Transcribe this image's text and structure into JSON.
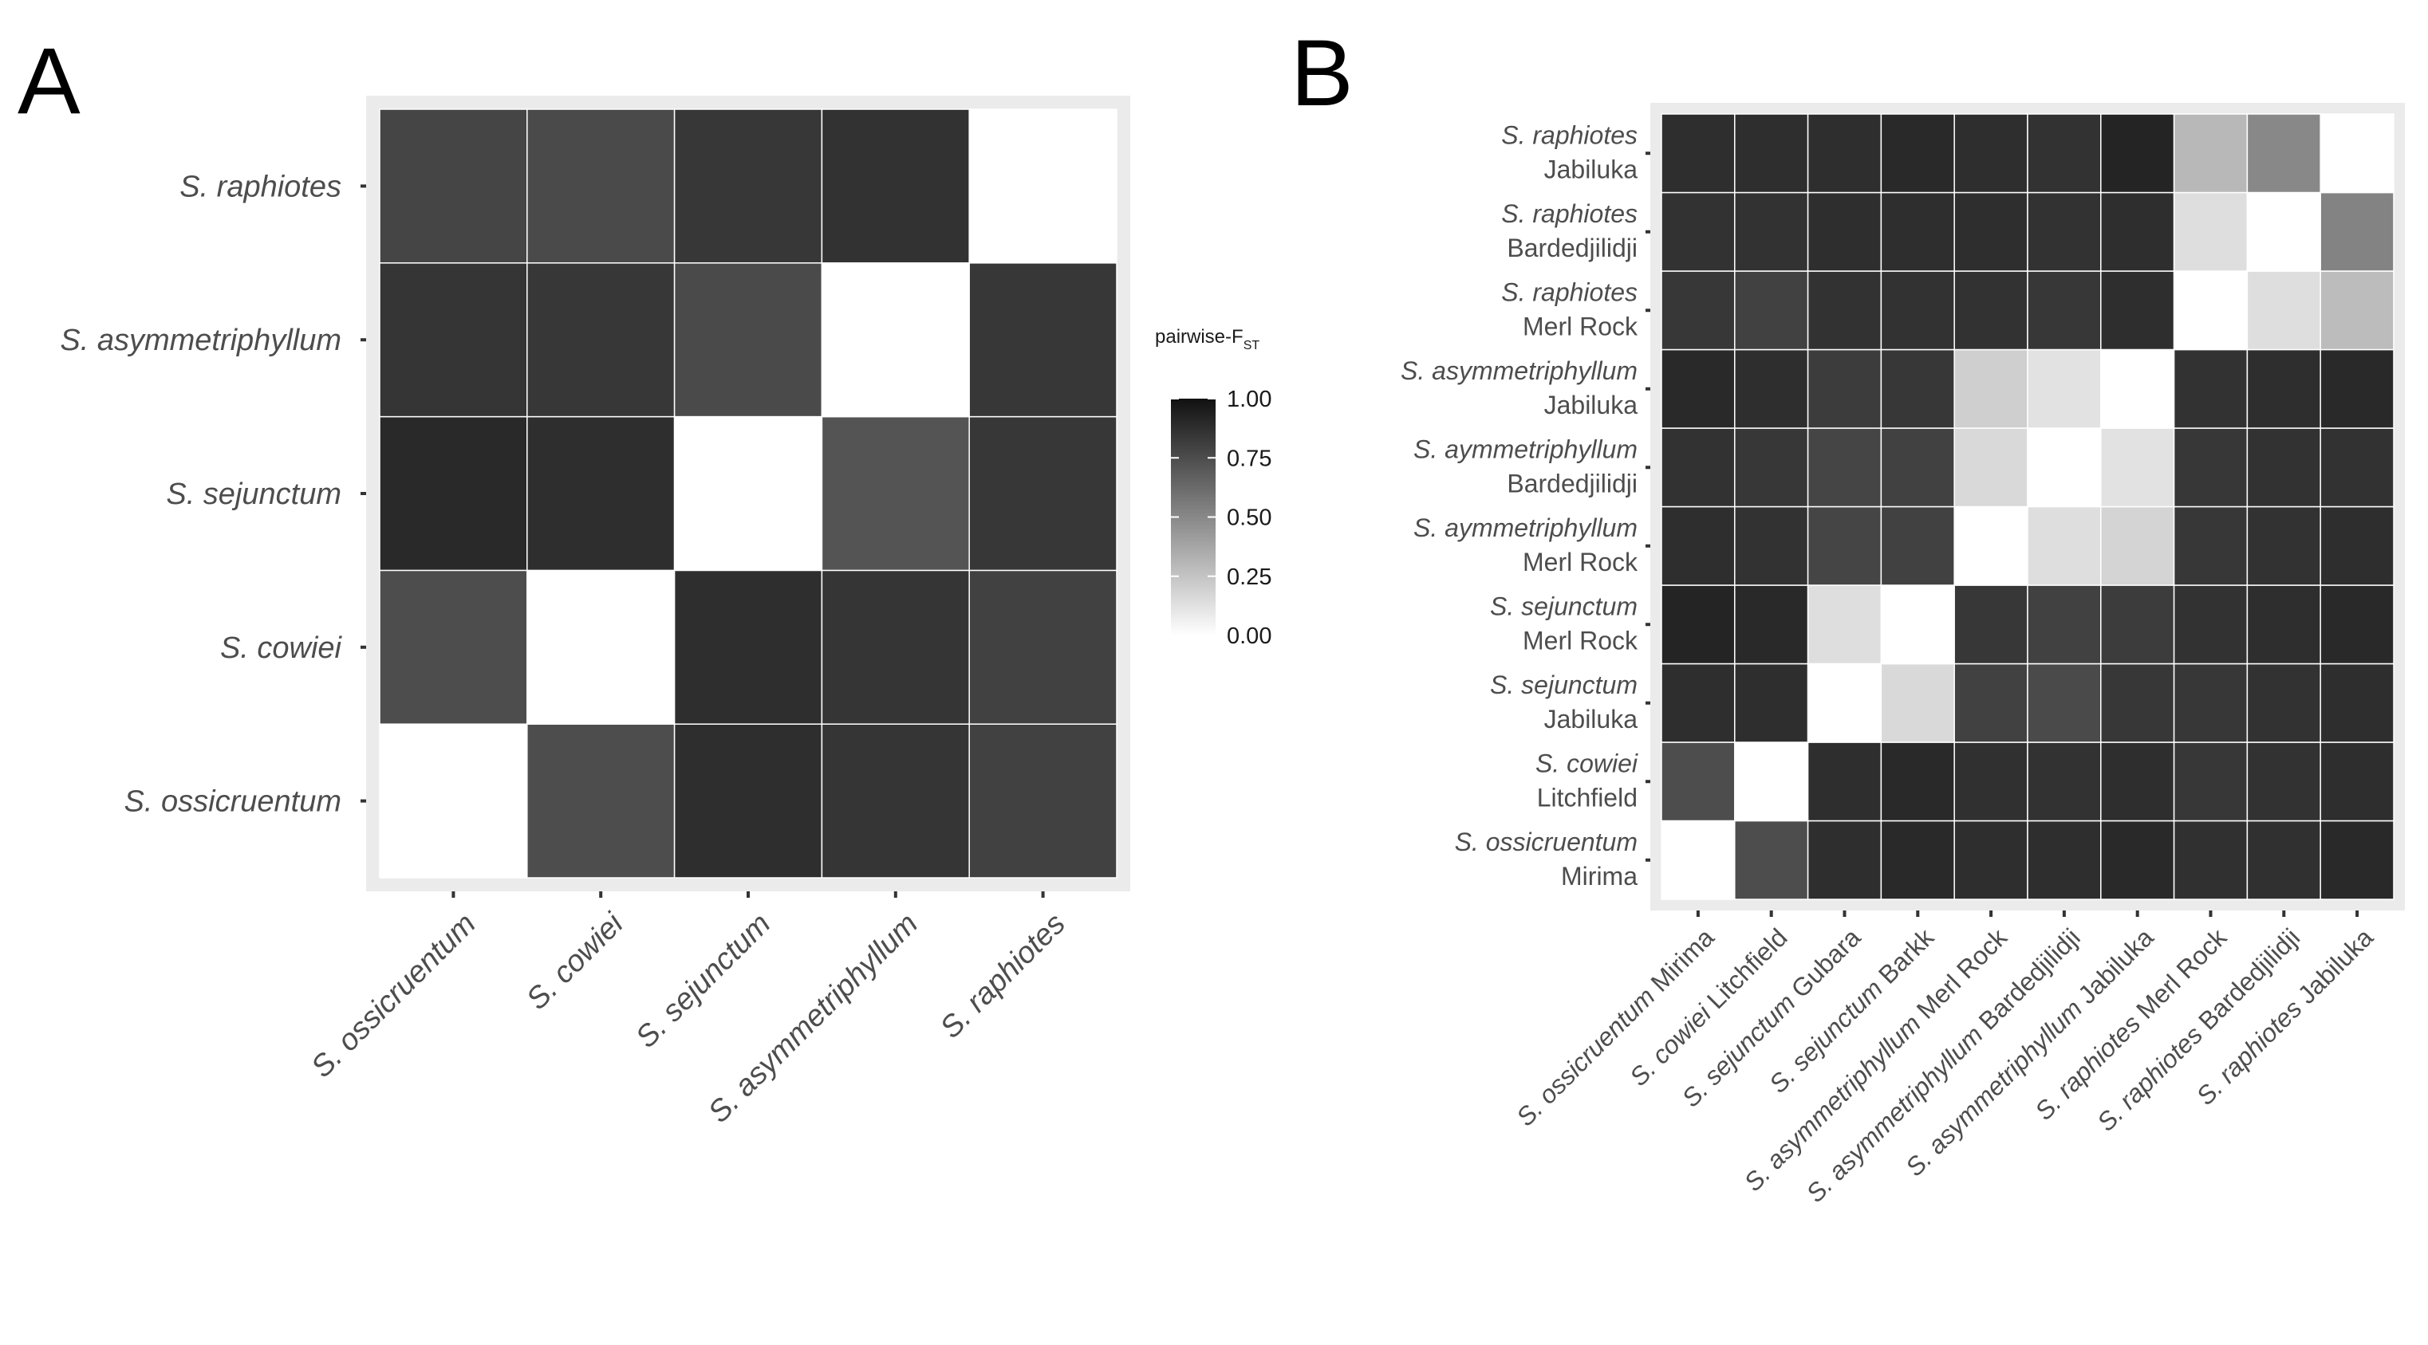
{
  "panel_labels": {
    "a": "A",
    "b": "B"
  },
  "legend": {
    "title_main": "pairwise-F",
    "title_sub": "ST",
    "ticks": [
      "1.00",
      "0.75",
      "0.50",
      "0.25",
      "0.00"
    ],
    "tick_values": [
      1.0,
      0.75,
      0.5,
      0.25,
      0.0
    ]
  },
  "chart_data": [
    {
      "type": "heatmap",
      "panel": "A",
      "x_categories": [
        "S. ossicruentum",
        "S. cowiei",
        "S. sejunctum",
        "S. asymmetriphyllum",
        "S. raphiotes"
      ],
      "y_categories": [
        "S. ossicruentum",
        "S. cowiei",
        "S. sejunctum",
        "S. asymmetriphyllum",
        "S. raphiotes"
      ],
      "values": [
        [
          0.0,
          0.75,
          0.88,
          0.85,
          0.8
        ],
        [
          0.75,
          0.0,
          0.88,
          0.85,
          0.8
        ],
        [
          0.9,
          0.88,
          0.0,
          0.72,
          0.84
        ],
        [
          0.85,
          0.84,
          0.76,
          0.0,
          0.84
        ],
        [
          0.78,
          0.76,
          0.84,
          0.86,
          0.0
        ]
      ],
      "scale": {
        "min": 0,
        "max": 1,
        "low_color": "#ffffff",
        "high_color": "#111111"
      },
      "xlabel": "",
      "ylabel": ""
    },
    {
      "type": "heatmap",
      "panel": "B",
      "x_labels": [
        {
          "species": "S. ossicruentum",
          "site": "Mirima"
        },
        {
          "species": "S. cowiei",
          "site": "Litchfield"
        },
        {
          "species": "S. sejunctum",
          "site": "Gubara"
        },
        {
          "species": "S. sejunctum",
          "site": "Barkk"
        },
        {
          "species": "S. asymmetriphyllum",
          "site": "Merl Rock"
        },
        {
          "species": "S. asymmetriphyllum",
          "site": "Bardedjilidji"
        },
        {
          "species": "S. asymmetriphyllum",
          "site": "Jabiluka"
        },
        {
          "species": "S. raphiotes",
          "site": "Merl Rock"
        },
        {
          "species": "S. raphiotes",
          "site": "Bardedjilidji"
        },
        {
          "species": "S. raphiotes",
          "site": "Jabiluka"
        }
      ],
      "y_labels": [
        {
          "species": "S. ossicruentum",
          "site": "Mirima"
        },
        {
          "species": "S. cowiei",
          "site": "Litchfield"
        },
        {
          "species": "S. sejunctum",
          "site": "Jabiluka"
        },
        {
          "species": "S. sejunctum",
          "site": "Merl Rock"
        },
        {
          "species": "S. aymmetriphyllum",
          "site": "Merl Rock"
        },
        {
          "species": "S. aymmetriphyllum",
          "site": "Bardedjilidji"
        },
        {
          "species": "S. asymmetriphyllum",
          "site": "Jabiluka"
        },
        {
          "species": "S. raphiotes",
          "site": "Merl Rock"
        },
        {
          "species": "S. raphiotes",
          "site": "Bardedjilidji"
        },
        {
          "species": "S. raphiotes",
          "site": "Jabiluka"
        }
      ],
      "values": [
        [
          0.0,
          0.75,
          0.88,
          0.9,
          0.88,
          0.88,
          0.9,
          0.87,
          0.87,
          0.9
        ],
        [
          0.75,
          0.0,
          0.88,
          0.9,
          0.87,
          0.86,
          0.88,
          0.84,
          0.86,
          0.88
        ],
        [
          0.88,
          0.88,
          0.0,
          0.16,
          0.8,
          0.76,
          0.84,
          0.84,
          0.86,
          0.88
        ],
        [
          0.92,
          0.9,
          0.14,
          0.0,
          0.84,
          0.8,
          0.82,
          0.86,
          0.88,
          0.9
        ],
        [
          0.88,
          0.86,
          0.78,
          0.8,
          0.0,
          0.14,
          0.18,
          0.84,
          0.86,
          0.88
        ],
        [
          0.86,
          0.84,
          0.78,
          0.8,
          0.16,
          0.0,
          0.12,
          0.84,
          0.86,
          0.86
        ],
        [
          0.9,
          0.88,
          0.82,
          0.84,
          0.2,
          0.12,
          0.0,
          0.86,
          0.88,
          0.9
        ],
        [
          0.84,
          0.8,
          0.86,
          0.86,
          0.86,
          0.84,
          0.88,
          0.0,
          0.14,
          0.28
        ],
        [
          0.86,
          0.86,
          0.88,
          0.88,
          0.88,
          0.86,
          0.88,
          0.14,
          0.0,
          0.52
        ],
        [
          0.88,
          0.88,
          0.88,
          0.9,
          0.88,
          0.86,
          0.92,
          0.3,
          0.5,
          0.0
        ]
      ],
      "scale": {
        "min": 0,
        "max": 1,
        "low_color": "#ffffff",
        "high_color": "#111111"
      },
      "xlabel": "",
      "ylabel": ""
    }
  ]
}
